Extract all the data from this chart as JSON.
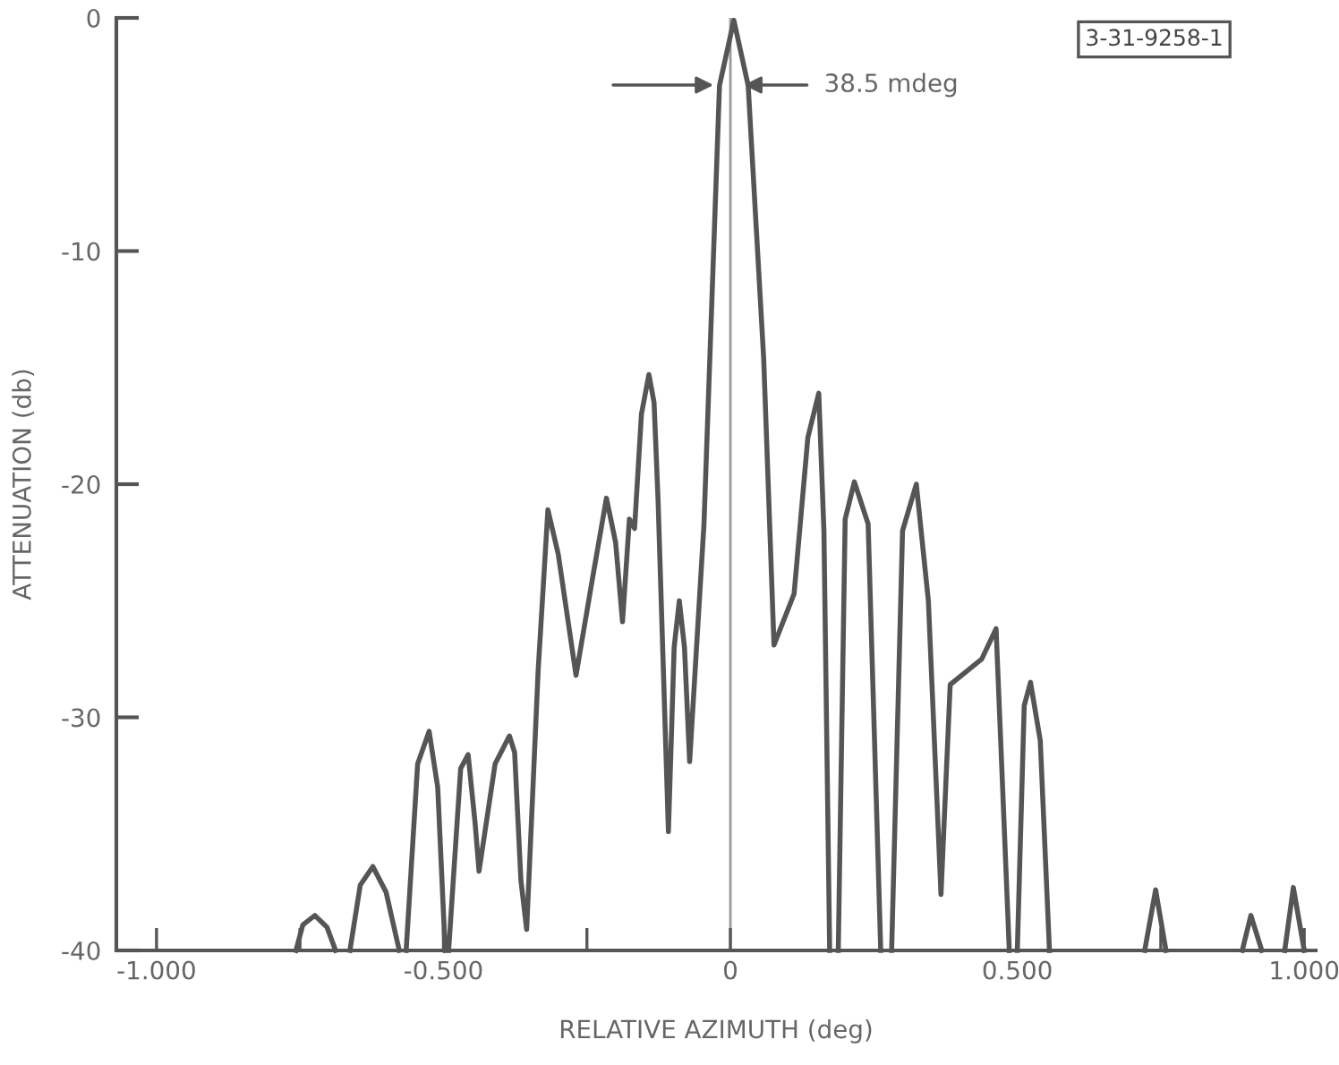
{
  "chart_data": {
    "type": "line",
    "xlabel": "RELATIVE AZIMUTH (deg)",
    "ylabel": "ATTENUATION (db)",
    "xlim": [
      -1.07,
      1.02
    ],
    "ylim": [
      -40,
      0
    ],
    "xticks": [
      {
        "value": -1,
        "label": "-1.000"
      },
      {
        "value": -0.75,
        "label": null
      },
      {
        "value": -0.5,
        "label": "-0.500"
      },
      {
        "value": -0.25,
        "label": null
      },
      {
        "value": 0,
        "label": "0"
      },
      {
        "value": 0.5,
        "label": "0.500"
      },
      {
        "value": 0.75,
        "label": null
      },
      {
        "value": 1,
        "label": "1.000"
      }
    ],
    "yticks": [
      0,
      -10,
      -20,
      -30,
      -40
    ],
    "grid": false,
    "legend": false,
    "marker": "none",
    "line_style": "solid",
    "ref_lines": [
      {
        "axis": "x",
        "value": 0,
        "label": null,
        "color": "#9a9a9a"
      }
    ],
    "annotations": [
      "38.5 mdeg",
      "3-31-9258-1"
    ],
    "series": [
      {
        "color": "#555555",
        "x": [
          -0.757,
          -0.745,
          -0.724,
          -0.703,
          -0.688,
          null,
          -0.663,
          -0.645,
          -0.623,
          -0.6,
          -0.577,
          null,
          -0.565,
          -0.545,
          -0.525,
          -0.51,
          -0.497,
          null,
          -0.491,
          -0.47,
          -0.457,
          -0.445,
          -0.438,
          -0.41,
          -0.385,
          -0.376,
          -0.365,
          -0.355,
          -0.335,
          -0.318,
          -0.3,
          -0.269,
          -0.24,
          -0.216,
          -0.2,
          -0.188,
          -0.176,
          -0.167,
          -0.155,
          -0.142,
          -0.133,
          -0.126,
          -0.108,
          -0.098,
          -0.089,
          -0.08,
          -0.071,
          -0.046,
          -0.019,
          0.006,
          0.031,
          0.058,
          0.076,
          0.111,
          0.135,
          0.154,
          0.163,
          0.173,
          null,
          0.188,
          0.2,
          0.216,
          0.24,
          0.262,
          null,
          0.281,
          0.3,
          0.324,
          0.345,
          0.367,
          0.383,
          0.438,
          0.463,
          0.486,
          null,
          0.5,
          0.512,
          0.523,
          0.54,
          0.556,
          null,
          0.722,
          0.741,
          0.759,
          null,
          0.892,
          0.907,
          0.926,
          null,
          0.966,
          0.981,
          1.0
        ],
        "values": [
          -40,
          -38.9,
          -38.5,
          -39.0,
          -40,
          null,
          -40,
          -37.2,
          -36.4,
          -37.5,
          -40,
          null,
          -40,
          -32,
          -30.6,
          -33,
          -40,
          null,
          -40,
          -32.2,
          -31.6,
          -34.5,
          -36.6,
          -32,
          -30.8,
          -31.5,
          -37,
          -39.1,
          -28,
          -21.1,
          -23,
          -28.2,
          -24,
          -20.6,
          -22.5,
          -25.9,
          -21.5,
          -21.9,
          -17,
          -15.3,
          -16.5,
          -20.7,
          -34.9,
          -27,
          -25.0,
          -27,
          -31.9,
          -21.7,
          -2.9,
          -0.1,
          -2.9,
          -14.6,
          -26.9,
          -24.7,
          -18,
          -16.1,
          -22,
          -40,
          null,
          -40,
          -21.5,
          -19.9,
          -21.7,
          -40,
          null,
          -40,
          -22,
          -20.0,
          -25,
          -37.6,
          -28.6,
          -27.5,
          -26.2,
          -40,
          null,
          -40,
          -29.5,
          -28.5,
          -31,
          -40,
          null,
          -40,
          -37.4,
          -40,
          null,
          -40,
          -38.5,
          -40,
          null,
          -40,
          -37.3,
          -40
        ]
      }
    ]
  }
}
